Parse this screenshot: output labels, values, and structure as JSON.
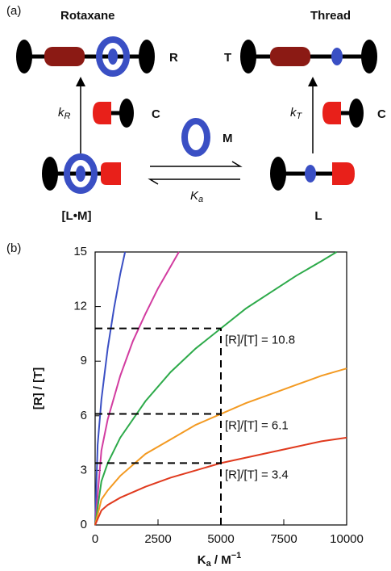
{
  "scheme": {
    "panel_label": "(a)",
    "rotaxane_title": "Rotaxane",
    "thread_title": "Thread",
    "labels": {
      "R": "R",
      "T": "T",
      "C_left": "C",
      "C_right": "C",
      "M": "M",
      "LM": "[L•M]",
      "L": "L"
    },
    "kR": {
      "main": "k",
      "sub": "R"
    },
    "kT": {
      "main": "k",
      "sub": "T"
    },
    "Ka": {
      "main": "K",
      "sub": "a"
    }
  },
  "chart_data": {
    "type": "line",
    "panel_label": "(b)",
    "ylabel": "[R] / [T]",
    "xlabel": {
      "main": "K",
      "sub": "a",
      "rest": " / M",
      "sup": "−1"
    },
    "xlim": [
      0,
      10000
    ],
    "xticks": [
      0,
      2500,
      5000,
      7500,
      10000
    ],
    "ylim": [
      0,
      15
    ],
    "yticks": [
      0,
      3,
      6,
      9,
      12,
      15
    ],
    "series": [
      {
        "color": "#3a4fc4",
        "x": [
          0,
          100,
          250,
          500,
          750,
          1000,
          1190
        ],
        "values": [
          0,
          4.4,
          6.9,
          9.7,
          11.9,
          13.8,
          15
        ]
      },
      {
        "color": "#d23ca0",
        "x": [
          0,
          250,
          500,
          1000,
          1500,
          2000,
          2500,
          3000,
          3330
        ],
        "values": [
          0,
          4.1,
          5.8,
          8.2,
          10.1,
          11.6,
          13.0,
          14.2,
          15
        ]
      },
      {
        "color": "#2daa4a",
        "x": [
          0,
          250,
          500,
          1000,
          2000,
          3000,
          4000,
          5000,
          6000,
          7000,
          8000,
          9000,
          9600
        ],
        "values": [
          0,
          2.4,
          3.4,
          4.8,
          6.8,
          8.4,
          9.7,
          10.8,
          11.9,
          12.8,
          13.7,
          14.5,
          15.0
        ]
      },
      {
        "color": "#f39a22",
        "x": [
          0,
          250,
          500,
          1000,
          2000,
          3000,
          4000,
          5000,
          6000,
          7000,
          8000,
          9000,
          10000
        ],
        "values": [
          0,
          1.4,
          1.9,
          2.7,
          3.9,
          4.7,
          5.5,
          6.1,
          6.7,
          7.2,
          7.7,
          8.2,
          8.6
        ]
      },
      {
        "color": "#e03a1e",
        "x": [
          0,
          250,
          500,
          1000,
          2000,
          3000,
          4000,
          5000,
          6000,
          7000,
          8000,
          9000,
          10000
        ],
        "values": [
          0,
          0.8,
          1.1,
          1.5,
          2.1,
          2.6,
          3.0,
          3.4,
          3.7,
          4.0,
          4.3,
          4.6,
          4.8
        ]
      }
    ],
    "annotations": [
      {
        "text": "[R]/[T] = 10.8",
        "x": 5000,
        "y": 10.8
      },
      {
        "text": "[R]/[T] = 6.1",
        "x": 5000,
        "y": 6.1
      },
      {
        "text": "[R]/[T] = 3.4",
        "x": 5000,
        "y": 3.4
      }
    ]
  }
}
